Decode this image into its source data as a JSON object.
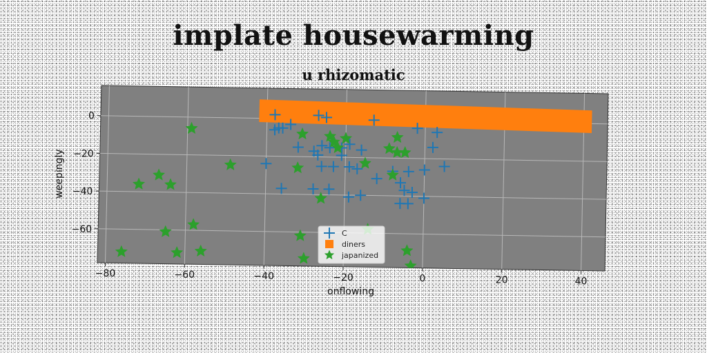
{
  "chart_data": {
    "type": "scatter",
    "title": "implate housewarming",
    "subtitle": "u rhizomatic",
    "xlabel": "onflowing",
    "ylabel": "weepingly",
    "xlim": [
      -82,
      46
    ],
    "ylim": [
      -78,
      16
    ],
    "xticks": [
      -80,
      -60,
      -40,
      -20,
      0,
      20,
      40
    ],
    "yticks": [
      0,
      -20,
      -40,
      -60
    ],
    "grid": true,
    "legend_position": "lower-center",
    "background": "#808080",
    "series": [
      {
        "name": "C",
        "marker": "plus",
        "color": "#1f77b4",
        "points": [
          [
            -38,
            2
          ],
          [
            -37,
            -5
          ],
          [
            -38,
            -6
          ],
          [
            -36,
            -5
          ],
          [
            -34,
            -3
          ],
          [
            -27,
            2
          ],
          [
            -25,
            1
          ],
          [
            -13,
            0
          ],
          [
            -2,
            -4
          ],
          [
            3,
            -6
          ],
          [
            2,
            -14
          ],
          [
            -32,
            -15
          ],
          [
            -28,
            -17
          ],
          [
            -26,
            -14
          ],
          [
            -24,
            -15
          ],
          [
            -21,
            -15
          ],
          [
            -19,
            -13
          ],
          [
            -16,
            -16
          ],
          [
            -27,
            -19
          ],
          [
            -21,
            -19
          ],
          [
            -40,
            -24
          ],
          [
            -26,
            -25
          ],
          [
            -23,
            -25
          ],
          [
            -19,
            -25
          ],
          [
            -17,
            -26
          ],
          [
            -12,
            -31
          ],
          [
            -8,
            -27
          ],
          [
            -4,
            -27
          ],
          [
            0,
            -26
          ],
          [
            5,
            -24
          ],
          [
            -36,
            -37
          ],
          [
            -28,
            -37
          ],
          [
            -24,
            -37
          ],
          [
            -19,
            -41
          ],
          [
            -16,
            -40
          ],
          [
            -5,
            -37
          ],
          [
            -6,
            -44
          ],
          [
            -4,
            -44
          ],
          [
            -3,
            -38
          ],
          [
            0,
            -41
          ],
          [
            -6,
            -33
          ]
        ]
      },
      {
        "name": "diners",
        "marker": "square",
        "color": "#ff7f0e",
        "band": {
          "x": [
            -42,
            42
          ],
          "y_start": [
            10,
            7
          ],
          "y_end": [
            -2,
            -5
          ]
        }
      },
      {
        "name": "japanized",
        "marker": "star",
        "color": "#2ca02c",
        "points": [
          [
            -59,
            -6
          ],
          [
            -31,
            -8
          ],
          [
            -24,
            -9
          ],
          [
            -23,
            -12
          ],
          [
            -20,
            -10
          ],
          [
            -22,
            -15
          ],
          [
            -7,
            -9
          ],
          [
            -9,
            -15
          ],
          [
            -7,
            -17
          ],
          [
            -5,
            -17
          ],
          [
            -32,
            -26
          ],
          [
            -49,
            -25
          ],
          [
            -15,
            -23
          ],
          [
            -8,
            -29
          ],
          [
            -67,
            -31
          ],
          [
            -72,
            -36
          ],
          [
            -64,
            -36
          ],
          [
            -26,
            -42
          ],
          [
            -58,
            -57
          ],
          [
            -14,
            -58
          ],
          [
            -65,
            -61
          ],
          [
            -31,
            -62
          ],
          [
            -76,
            -72
          ],
          [
            -62,
            -72
          ],
          [
            -56,
            -71
          ],
          [
            -4,
            -69
          ],
          [
            -30,
            -74
          ],
          [
            -3,
            -77
          ]
        ]
      }
    ]
  }
}
